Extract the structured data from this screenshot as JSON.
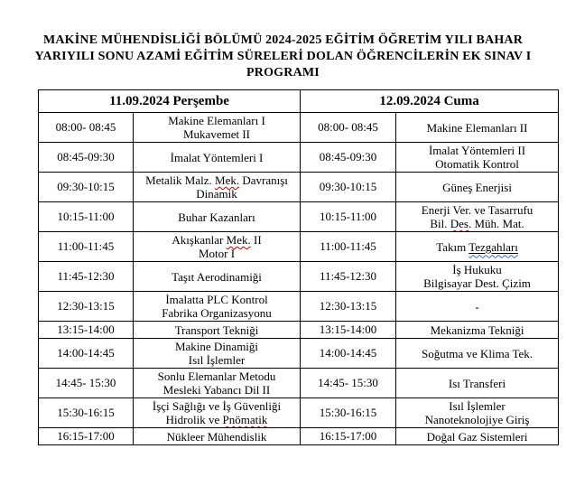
{
  "colors": {
    "spellcheck_squiggle": "#cc0000",
    "grammar_squiggle": "#3a67c8",
    "table_border": "#000000",
    "text": "#000000",
    "background": "#ffffff"
  },
  "page_title": {
    "lines": [
      "MAKİNE MÜHENDİSLİĞİ BÖLÜMÜ 2024-2025 EĞİTİM ÖĞRETİM YILI BAHAR",
      "YARIYILI SONU AZAMİ EĞİTİM SÜRELERİ DOLAN ÖĞRENCİLERİN EK SINAV I",
      "PROGRAMI"
    ]
  },
  "schedule": {
    "columns": [
      {
        "header": "11.09.2024 Perşembe"
      },
      {
        "header": "12.09.2024 Cuma"
      }
    ],
    "rows": [
      {
        "thursday": {
          "time": "08:00- 08:45",
          "courses": [
            [
              {
                "text": "Makine Elemanları I"
              }
            ],
            [
              {
                "text": "Mukavemet II"
              }
            ]
          ]
        },
        "friday": {
          "time": "08:00- 08:45",
          "courses": [
            [
              {
                "text": "Makine Elemanları II"
              }
            ]
          ]
        }
      },
      {
        "thursday": {
          "time": "08:45-09:30",
          "courses": [
            [
              {
                "text": "İmalat Yöntemleri I"
              }
            ]
          ]
        },
        "friday": {
          "time": "08:45-09:30",
          "courses": [
            [
              {
                "text": "İmalat Yöntemleri II"
              }
            ],
            [
              {
                "text": "Otomatik Kontrol"
              }
            ]
          ]
        }
      },
      {
        "thursday": {
          "time": "09:30-10:15",
          "courses": [
            [
              {
                "text": "Metalik Malz. "
              },
              {
                "text": "Mek.",
                "mark": "spellcheck"
              },
              {
                "text": " Davranışı"
              }
            ],
            [
              {
                "text": "Dinamik"
              }
            ]
          ]
        },
        "friday": {
          "time": "09:30-10:15",
          "courses": [
            [
              {
                "text": "Güneş Enerjisi"
              }
            ]
          ]
        }
      },
      {
        "thursday": {
          "time": "10:15-11:00",
          "courses": [
            [
              {
                "text": "Buhar Kazanları"
              }
            ]
          ]
        },
        "friday": {
          "time": "10:15-11:00",
          "courses": [
            [
              {
                "text": "Enerji Ver. ve Tasarrufu"
              }
            ],
            [
              {
                "text": "Bil. "
              },
              {
                "text": "Des.",
                "mark": "spellcheck"
              },
              {
                "text": " Müh. Mat."
              }
            ]
          ]
        }
      },
      {
        "thursday": {
          "time": "11:00-11:45",
          "courses": [
            [
              {
                "text": "Akışkanlar "
              },
              {
                "text": "Mek.",
                "mark": "spellcheck"
              },
              {
                "text": " II"
              }
            ],
            [
              {
                "text": "Motor I"
              }
            ]
          ]
        },
        "friday": {
          "time": "11:00-11:45",
          "courses": [
            [
              {
                "text": "Takım "
              },
              {
                "text": "Tezgahları",
                "mark": "underline-grammar"
              }
            ]
          ]
        }
      },
      {
        "thursday": {
          "time": "11:45-12:30",
          "courses": [
            [
              {
                "text": "Taşıt Aerodinamiği"
              }
            ]
          ]
        },
        "friday": {
          "time": "11:45-12:30",
          "courses": [
            [
              {
                "text": "İş Hukuku"
              }
            ],
            [
              {
                "text": "Bilgisayar Dest. Çizim"
              }
            ]
          ]
        }
      },
      {
        "thursday": {
          "time": "12:30-13:15",
          "courses": [
            [
              {
                "text": "İmalatta PLC Kontrol"
              }
            ],
            [
              {
                "text": "Fabrika Organizasyonu"
              }
            ]
          ]
        },
        "friday": {
          "time": "12:30-13:15",
          "courses": [
            [
              {
                "text": "-"
              }
            ]
          ]
        }
      },
      {
        "thursday": {
          "time": "13:15-14:00",
          "courses": [
            [
              {
                "text": "Transport Tekniği"
              }
            ]
          ]
        },
        "friday": {
          "time": "13:15-14:00",
          "courses": [
            [
              {
                "text": "Mekanizma Tekniği"
              }
            ]
          ]
        }
      },
      {
        "thursday": {
          "time": "14:00-14:45",
          "courses": [
            [
              {
                "text": "Makine Dinamiği"
              }
            ],
            [
              {
                "text": "Isıl İşlemler"
              }
            ]
          ]
        },
        "friday": {
          "time": "14:00-14:45",
          "courses": [
            [
              {
                "text": "Soğutma ve Klima Tek."
              }
            ]
          ]
        }
      },
      {
        "thursday": {
          "time": "14:45- 15:30",
          "courses": [
            [
              {
                "text": "Sonlu Elemanlar Metodu"
              }
            ],
            [
              {
                "text": "Mesleki Yabancı Dil II"
              }
            ]
          ]
        },
        "friday": {
          "time": "14:45- 15:30",
          "courses": [
            [
              {
                "text": "Isı Transferi"
              }
            ]
          ]
        }
      },
      {
        "thursday": {
          "time": "15:30-16:15",
          "courses": [
            [
              {
                "text": "İşçi Sağlığı ve İş Güvenliği"
              }
            ],
            [
              {
                "text": "Hidrolik ve "
              },
              {
                "text": "Pnömatik",
                "mark": "spellcheck"
              }
            ]
          ]
        },
        "friday": {
          "time": "15:30-16:15",
          "courses": [
            [
              {
                "text": "Isıl İşlemler"
              }
            ],
            [
              {
                "text": "Nanoteknolojiye Giriş"
              }
            ]
          ]
        }
      },
      {
        "thursday": {
          "time": "16:15-17:00",
          "courses": [
            [
              {
                "text": "Nükleer Mühendislik"
              }
            ]
          ]
        },
        "friday": {
          "time": "16:15-17:00",
          "courses": [
            [
              {
                "text": "Doğal Gaz Sistemleri"
              }
            ]
          ]
        }
      }
    ]
  }
}
